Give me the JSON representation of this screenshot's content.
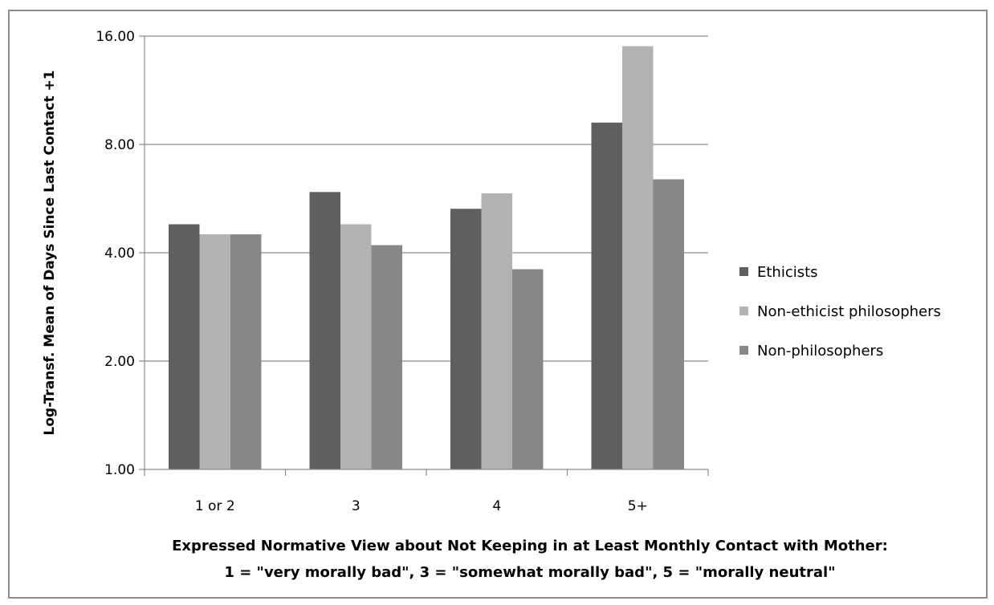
{
  "chart_data": {
    "type": "bar",
    "title": "",
    "ylabel": "Log-Transf. Mean of Days Since Last Contact +1",
    "xlabel_line1": "Expressed Normative View about Not Keeping in at Least Monthly Contact with Mother:",
    "xlabel_line2": "1 = \"very morally bad\", 3 = \"somewhat morally bad\", 5 = \"morally neutral\"",
    "y_scale": "log2",
    "ylim": [
      1,
      16
    ],
    "yticks": [
      "1.00",
      "2.00",
      "4.00",
      "8.00",
      "16.00"
    ],
    "ytick_values": [
      1,
      2,
      4,
      8,
      16
    ],
    "categories": [
      "1 or 2",
      "3",
      "4",
      "5+"
    ],
    "series": [
      {
        "name": "Ethicists",
        "color": "#5f5f5f",
        "values": [
          4.8,
          5.9,
          5.3,
          9.2
        ]
      },
      {
        "name": "Non-ethicist philosophers",
        "color": "#b2b2b2",
        "values": [
          4.5,
          4.8,
          5.85,
          15.0
        ]
      },
      {
        "name": "Non-philosophers",
        "color": "#878787",
        "values": [
          4.5,
          4.2,
          3.6,
          6.4
        ]
      }
    ],
    "grid": true,
    "legend_position": "right"
  }
}
